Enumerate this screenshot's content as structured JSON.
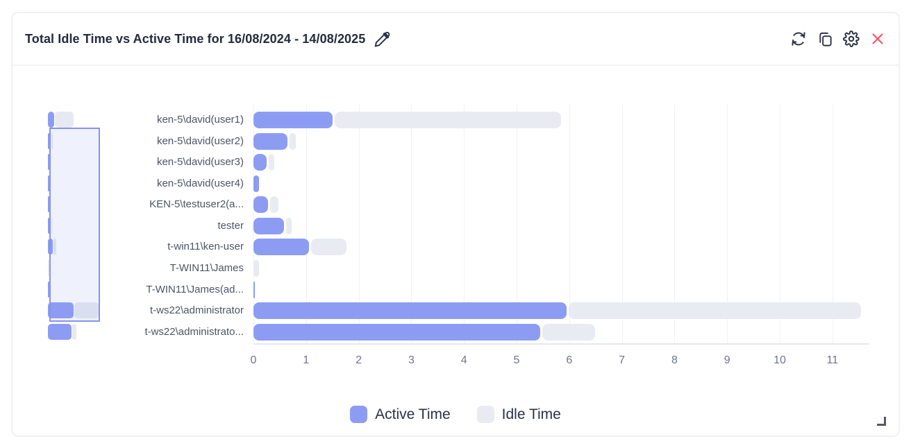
{
  "header": {
    "title": "Total Idle Time vs Active Time for 16/08/2024 - 14/08/2025",
    "actions": [
      {
        "name": "refresh",
        "icon": "refresh-icon"
      },
      {
        "name": "copy",
        "icon": "copy-icon"
      },
      {
        "name": "settings",
        "icon": "gear-icon"
      },
      {
        "name": "close",
        "icon": "close-icon",
        "color": "#f4586a"
      }
    ]
  },
  "colors": {
    "active": "#8d9cf3",
    "idle": "#e9ebf2",
    "mini_idle": "#e6e9f1",
    "zoom_window_border": "#8493ee",
    "icon": "#2b3245",
    "close": "#f4586a"
  },
  "chart_data": {
    "type": "bar",
    "orientation": "horizontal",
    "stacked": true,
    "title": "Total Idle Time vs Active Time for 16/08/2024 - 14/08/2025",
    "xlabel": "",
    "ylabel": "",
    "grid": true,
    "legend_position": "bottom",
    "x_ticks": [
      0,
      1,
      2,
      3,
      4,
      5,
      6,
      7,
      8,
      9,
      10,
      11
    ],
    "xlim": [
      0,
      11.65
    ],
    "categories": [
      "ken-5\\david(user1)",
      "ken-5\\david(user2)",
      "ken-5\\david(user3)",
      "ken-5\\david(user4)",
      "KEN-5\\testuser2(a...",
      "tester",
      "t-win11\\ken-user",
      "T-WIN11\\James",
      "T-WIN11\\James(ad...",
      "t-ws22\\administrator",
      "t-ws22\\administrato..."
    ],
    "series": [
      {
        "name": "Active Time",
        "color": "#8d9cf3",
        "values": [
          1.5,
          0.65,
          0.25,
          0.1,
          0.28,
          0.58,
          1.05,
          0,
          0.02,
          5.95,
          5.45
        ]
      },
      {
        "name": "Idle Time",
        "color": "#e9ebf2",
        "values": [
          4.3,
          0.12,
          0.1,
          0,
          0.15,
          0.1,
          0.68,
          0.1,
          0,
          5.55,
          1.0
        ]
      }
    ],
    "zoom_slider": {
      "visible": true,
      "orientation": "vertical",
      "window_start_index": 1,
      "window_end_index": 9
    }
  },
  "legend": {
    "items": [
      {
        "label": "Active Time",
        "color": "#8d9cf3"
      },
      {
        "label": "Idle Time",
        "color": "#e9ebf2"
      }
    ]
  }
}
